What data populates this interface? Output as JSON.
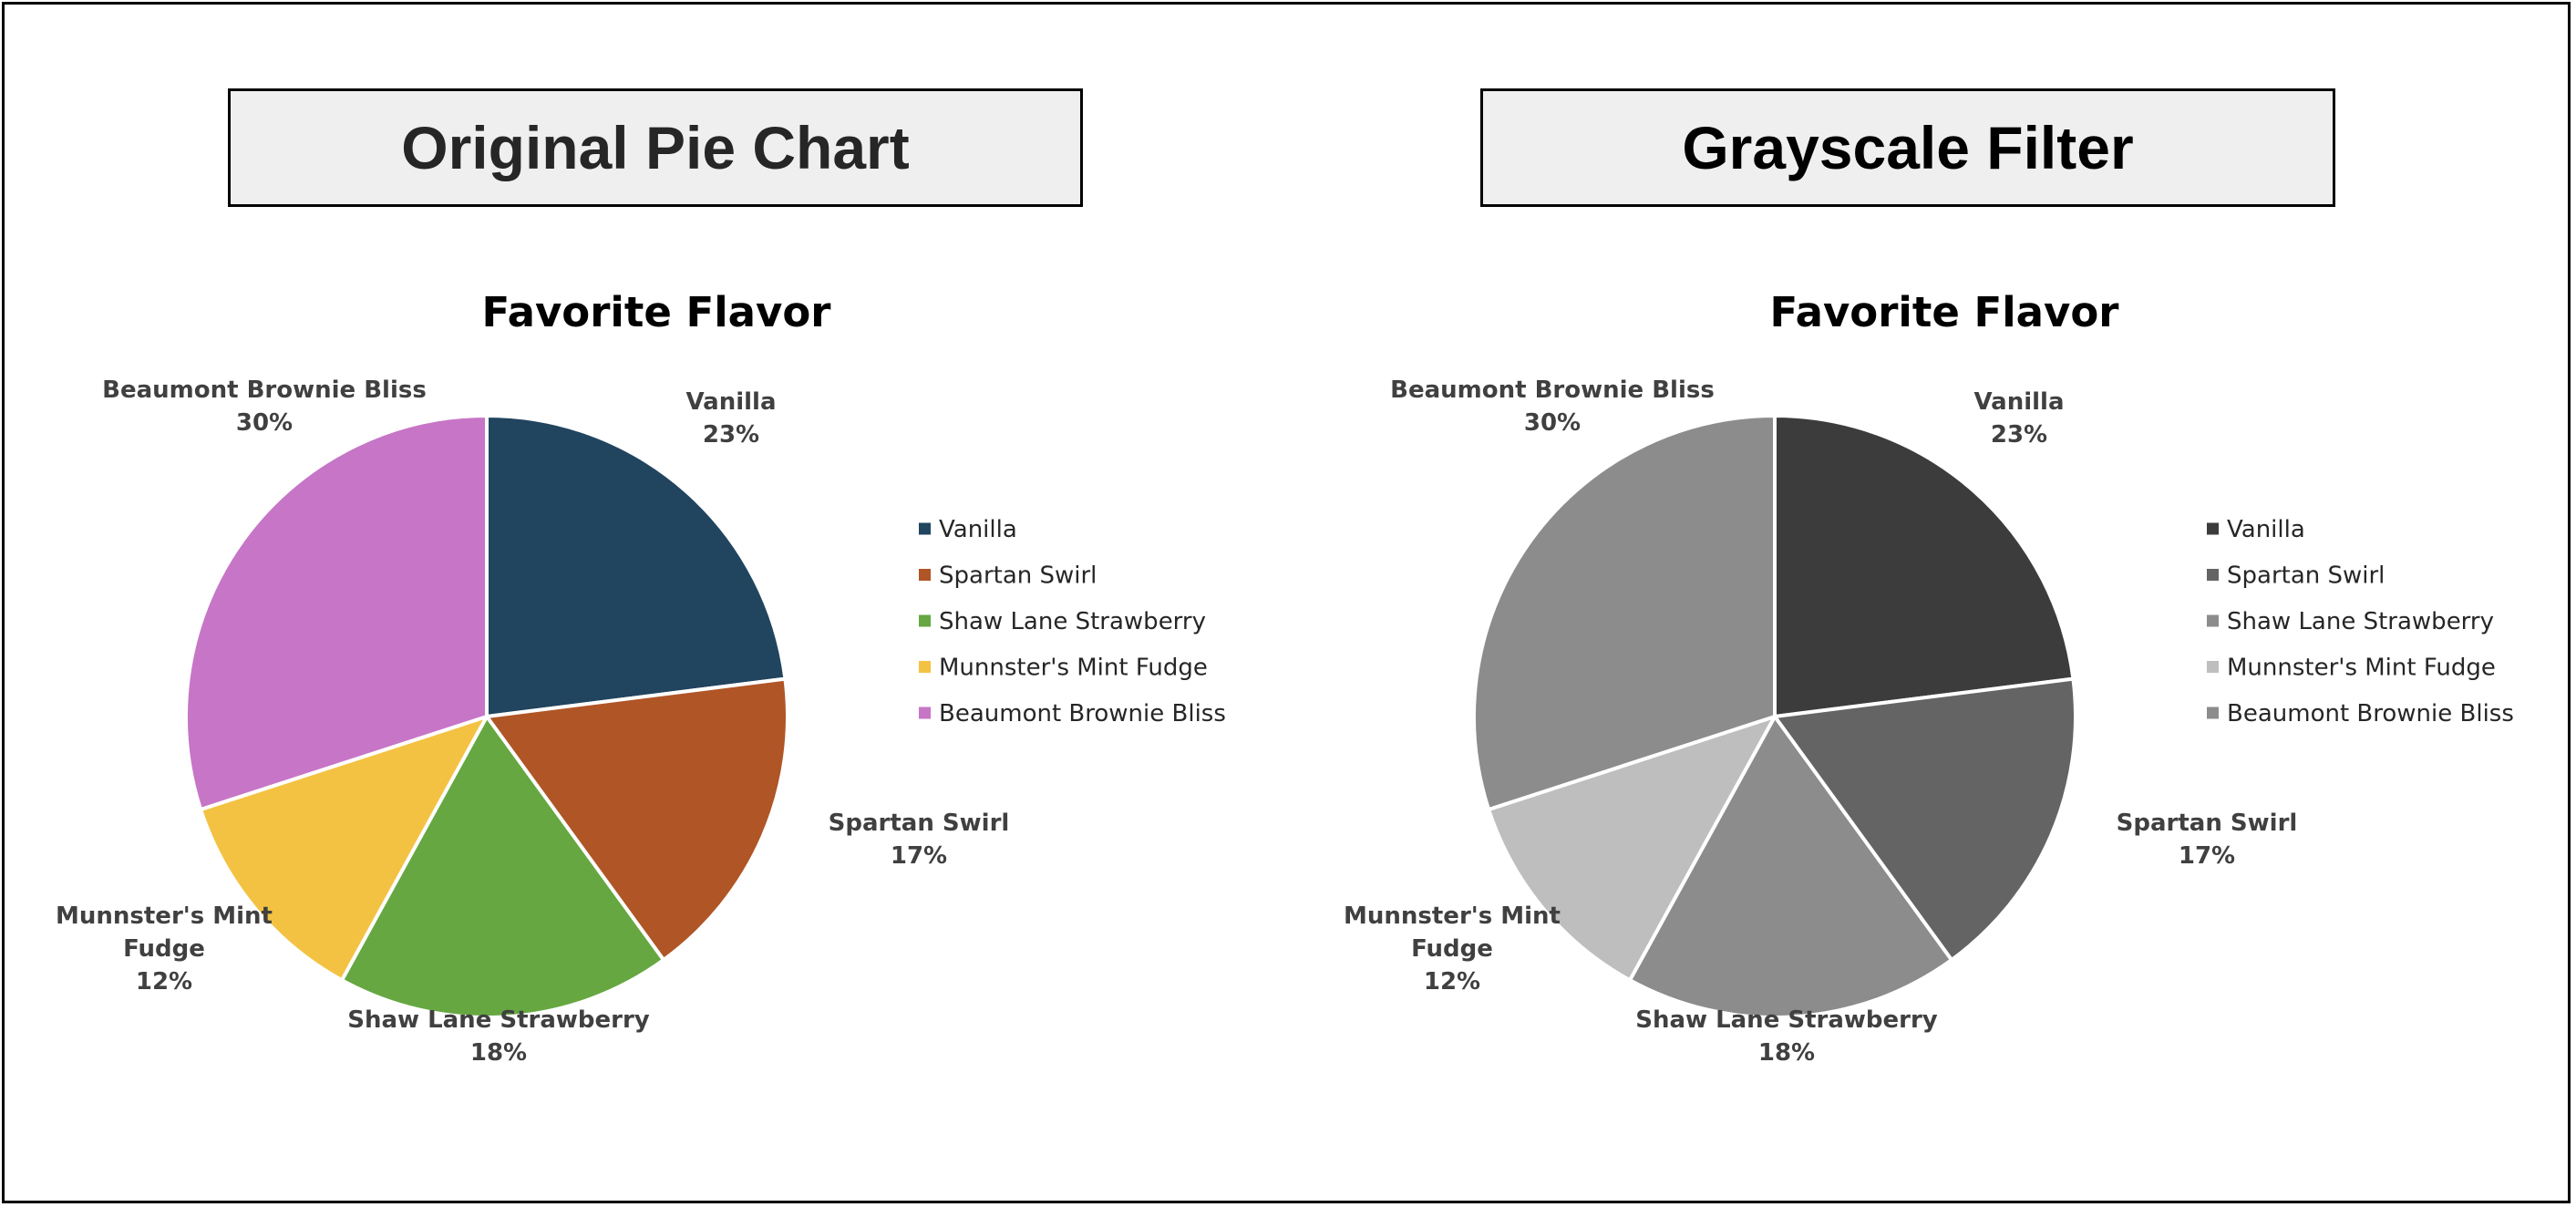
{
  "panels": [
    {
      "heading": "Original Pie Chart"
    },
    {
      "heading": "Grayscale Filter"
    }
  ],
  "chart_data": [
    {
      "type": "pie",
      "title": "Favorite Flavor",
      "slices": [
        {
          "label": "Vanilla",
          "value": 23,
          "display": "23%",
          "label_lines": [
            "Vanilla"
          ],
          "color": "#21445f"
        },
        {
          "label": "Spartan Swirl",
          "value": 17,
          "display": "17%",
          "label_lines": [
            "Spartan Swirl"
          ],
          "color": "#b05526"
        },
        {
          "label": "Shaw Lane Strawberry",
          "value": 18,
          "display": "18%",
          "label_lines": [
            "Shaw Lane Strawberry"
          ],
          "color": "#66a741"
        },
        {
          "label": "Munnster's Mint Fudge",
          "value": 12,
          "display": "12%",
          "label_lines": [
            "Munnster's Mint",
            "Fudge"
          ],
          "color": "#f4c243"
        },
        {
          "label": "Beaumont Brownie Bliss",
          "value": 30,
          "display": "30%",
          "label_lines": [
            "Beaumont Brownie Bliss"
          ],
          "color": "#c775c7"
        }
      ],
      "legend": {
        "position": "right",
        "entries": [
          "Vanilla",
          "Spartan Swirl",
          "Shaw Lane Strawberry",
          "Munnster's Mint Fudge",
          "Beaumont Brownie Bliss"
        ]
      }
    },
    {
      "type": "pie",
      "title": "Favorite Flavor",
      "slices": [
        {
          "label": "Vanilla",
          "value": 23,
          "display": "23%",
          "label_lines": [
            "Vanilla"
          ],
          "color": "#3c3c3c"
        },
        {
          "label": "Spartan Swirl",
          "value": 17,
          "display": "17%",
          "label_lines": [
            "Spartan Swirl"
          ],
          "color": "#646464"
        },
        {
          "label": "Shaw Lane Strawberry",
          "value": 18,
          "display": "18%",
          "label_lines": [
            "Shaw Lane Strawberry"
          ],
          "color": "#8c8c8c"
        },
        {
          "label": "Munnster's Mint Fudge",
          "value": 12,
          "display": "12%",
          "label_lines": [
            "Munnster's Mint",
            "Fudge"
          ],
          "color": "#bebebe"
        },
        {
          "label": "Beaumont Brownie Bliss",
          "value": 30,
          "display": "30%",
          "label_lines": [
            "Beaumont Brownie Bliss"
          ],
          "color": "#8c8c8c"
        }
      ],
      "legend": {
        "position": "right",
        "entries": [
          "Vanilla",
          "Spartan Swirl",
          "Shaw Lane Strawberry",
          "Munnster's Mint Fudge",
          "Beaumont Brownie Bliss"
        ]
      }
    }
  ]
}
